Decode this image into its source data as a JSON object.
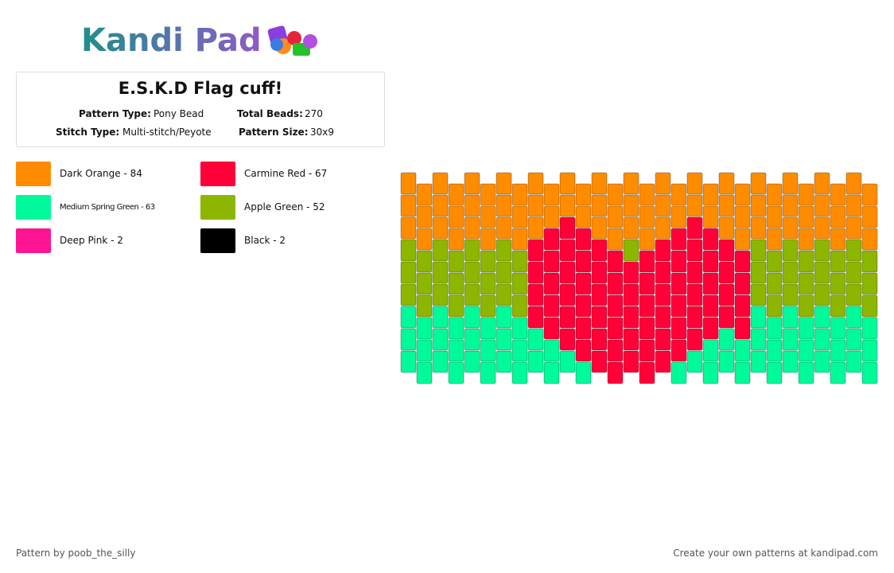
{
  "header": {
    "logo": "Kandi Pad",
    "title": "E.S.K.D Flag cuff!"
  },
  "info": [
    {
      "label": "Pattern Type:",
      "value": "Pony Bead"
    },
    {
      "label": "Total Beads:",
      "value": "270"
    },
    {
      "label": "Stitch Type:",
      "value": "Multi-stitch/Peyote"
    },
    {
      "label": "Pattern Size:",
      "value": "30x9"
    }
  ],
  "legend": [
    {
      "text": "Dark Orange - 84",
      "color": "#ff8c00"
    },
    {
      "text": "Carmine Red - 67",
      "color": "#ff0038"
    },
    {
      "text": "Medium Spring Green - 63",
      "color": "#00fa9a"
    },
    {
      "text": "Apple Green - 52",
      "color": "#8db600"
    },
    {
      "text": "Deep Pink - 2",
      "color": "#ff1493"
    },
    {
      "text": "Black - 2",
      "color": "#000000"
    }
  ],
  "footer": {
    "left": "Pattern by poob_the_silly",
    "right": "Create your own patterns at kandipad.com"
  }
}
